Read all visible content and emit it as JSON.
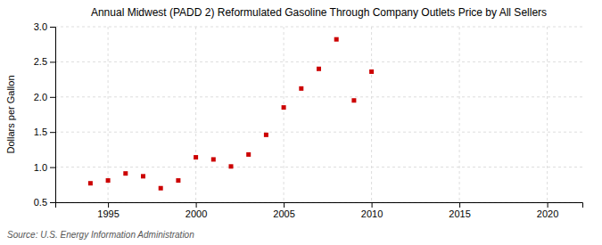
{
  "chart_data": {
    "type": "scatter",
    "title": "Annual Midwest (PADD 2) Reformulated Gasoline Through Company Outlets Price by All Sellers",
    "y_label": "Dollars per Gallon",
    "source": "Source: U.S. Energy Information Administration",
    "x": [
      1994,
      1995,
      1996,
      1997,
      1998,
      1999,
      2000,
      2001,
      2002,
      2003,
      2004,
      2005,
      2006,
      2007,
      2008,
      2009,
      2010
    ],
    "values": [
      0.77,
      0.81,
      0.91,
      0.87,
      0.7,
      0.81,
      1.14,
      1.11,
      1.01,
      1.18,
      1.46,
      1.85,
      2.12,
      2.4,
      2.82,
      1.95,
      2.36
    ],
    "color": "#cc0000",
    "marker": "square",
    "xlim": [
      1992,
      2022
    ],
    "ylim": [
      0.5,
      3.0
    ],
    "xticks": [
      1995,
      2000,
      2005,
      2010,
      2015,
      2020
    ],
    "yticks": [
      0.5,
      {
        "value": 1.0,
        "label": "1.0"
      },
      1.5,
      {
        "value": 2.0,
        "label": "2.0"
      },
      2.5,
      {
        "value": 3.0,
        "label": "3.0"
      }
    ],
    "grid": true
  }
}
